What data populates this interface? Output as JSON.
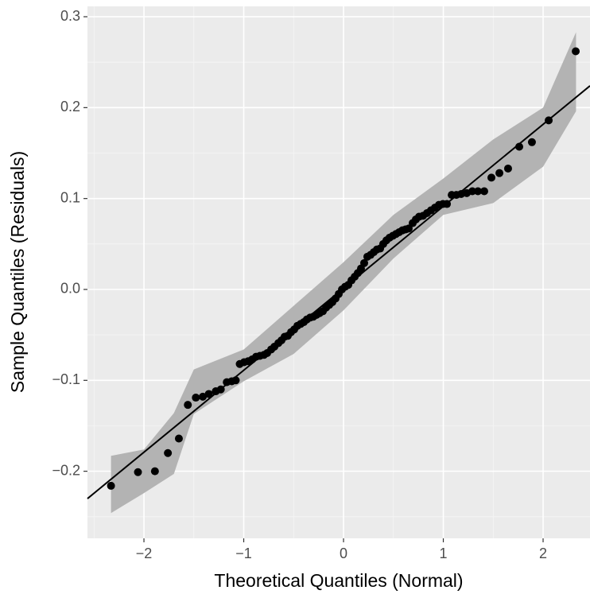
{
  "chart_data": {
    "type": "scatter",
    "x_label": "Theoretical Quantiles (Normal)",
    "y_label": "Sample Quantiles (Residuals)",
    "xlim": [
      -2.566,
      2.47
    ],
    "ylim": [
      -0.2738,
      0.3114
    ],
    "xticks": [
      {
        "value": -2,
        "label": "−2"
      },
      {
        "value": -1,
        "label": "−1"
      },
      0,
      1,
      2
    ],
    "yticks": [
      {
        "value": -0.2,
        "label": "−0.2"
      },
      {
        "value": -0.1,
        "label": "−0.1"
      },
      {
        "value": 0,
        "label": "0.0"
      },
      0.1,
      0.2,
      0.3
    ],
    "grid": true,
    "color": "#000000",
    "x": [
      -2.33,
      -2.06,
      -1.89,
      -1.76,
      -1.65,
      -1.56,
      -1.48,
      -1.41,
      -1.35,
      -1.28,
      -1.23,
      -1.17,
      -1.12,
      -1.08,
      -1.04,
      -0.996,
      -0.956,
      -0.916,
      -0.876,
      -0.837,
      -0.797,
      -0.765,
      -0.725,
      -0.693,
      -0.653,
      -0.622,
      -0.59,
      -0.558,
      -0.526,
      -0.494,
      -0.462,
      -0.43,
      -0.398,
      -0.367,
      -0.335,
      -0.303,
      -0.271,
      -0.239,
      -0.207,
      -0.175,
      -0.143,
      -0.112,
      -0.08,
      -0.048,
      -0.016,
      0.016,
      0.048,
      0.08,
      0.112,
      0.143,
      0.175,
      0.207,
      0.239,
      0.271,
      0.303,
      0.335,
      0.367,
      0.398,
      0.43,
      0.462,
      0.494,
      0.526,
      0.558,
      0.59,
      0.622,
      0.653,
      0.693,
      0.725,
      0.757,
      0.797,
      0.837,
      0.876,
      0.916,
      0.956,
      0.996,
      1.036,
      1.084,
      1.131,
      1.179,
      1.235,
      1.291,
      1.347,
      1.41,
      1.482,
      1.562,
      1.649,
      1.761,
      1.888,
      2.056,
      2.327
    ],
    "y": [
      -0.216,
      -0.201,
      -0.2,
      -0.18,
      -0.164,
      -0.127,
      -0.119,
      -0.118,
      -0.115,
      -0.112,
      -0.11,
      -0.102,
      -0.101,
      -0.1,
      -0.082,
      -0.08,
      -0.079,
      -0.077,
      -0.074,
      -0.073,
      -0.072,
      -0.07,
      -0.066,
      -0.063,
      -0.059,
      -0.056,
      -0.052,
      -0.051,
      -0.047,
      -0.044,
      -0.04,
      -0.038,
      -0.036,
      -0.033,
      -0.031,
      -0.03,
      -0.028,
      -0.026,
      -0.024,
      -0.02,
      -0.017,
      -0.014,
      -0.01,
      -0.005,
      0,
      0.003,
      0.005,
      0.01,
      0.014,
      0.018,
      0.023,
      0.029,
      0.036,
      0.038,
      0.041,
      0.044,
      0.045,
      0.05,
      0.054,
      0.057,
      0.059,
      0.061,
      0.063,
      0.065,
      0.066,
      0.067,
      0.073,
      0.077,
      0.08,
      0.081,
      0.084,
      0.087,
      0.09,
      0.093,
      0.094,
      0.094,
      0.104,
      0.104,
      0.105,
      0.106,
      0.108,
      0.108,
      0.108,
      0.123,
      0.128,
      0.133,
      0.157,
      0.162,
      0.186,
      0.262
    ],
    "reference_line": {
      "color": "#000000",
      "x": [
        -2.566,
        2.47
      ],
      "y": [
        -0.2301,
        0.224
      ]
    },
    "band": {
      "color": "#b3b3b3",
      "x": [
        -2.33,
        -2.0,
        -1.7,
        -1.5,
        -1.0,
        -0.5,
        0.0,
        0.5,
        1.0,
        1.5,
        2.0,
        2.33
      ],
      "lower": [
        -0.246,
        -0.224,
        -0.203,
        -0.137,
        -0.101,
        -0.071,
        -0.023,
        0.034,
        0.082,
        0.095,
        0.135,
        0.196
      ],
      "upper": [
        -0.183,
        -0.176,
        -0.136,
        -0.088,
        -0.066,
        -0.018,
        0.03,
        0.082,
        0.122,
        0.165,
        0.2,
        0.283
      ]
    }
  }
}
